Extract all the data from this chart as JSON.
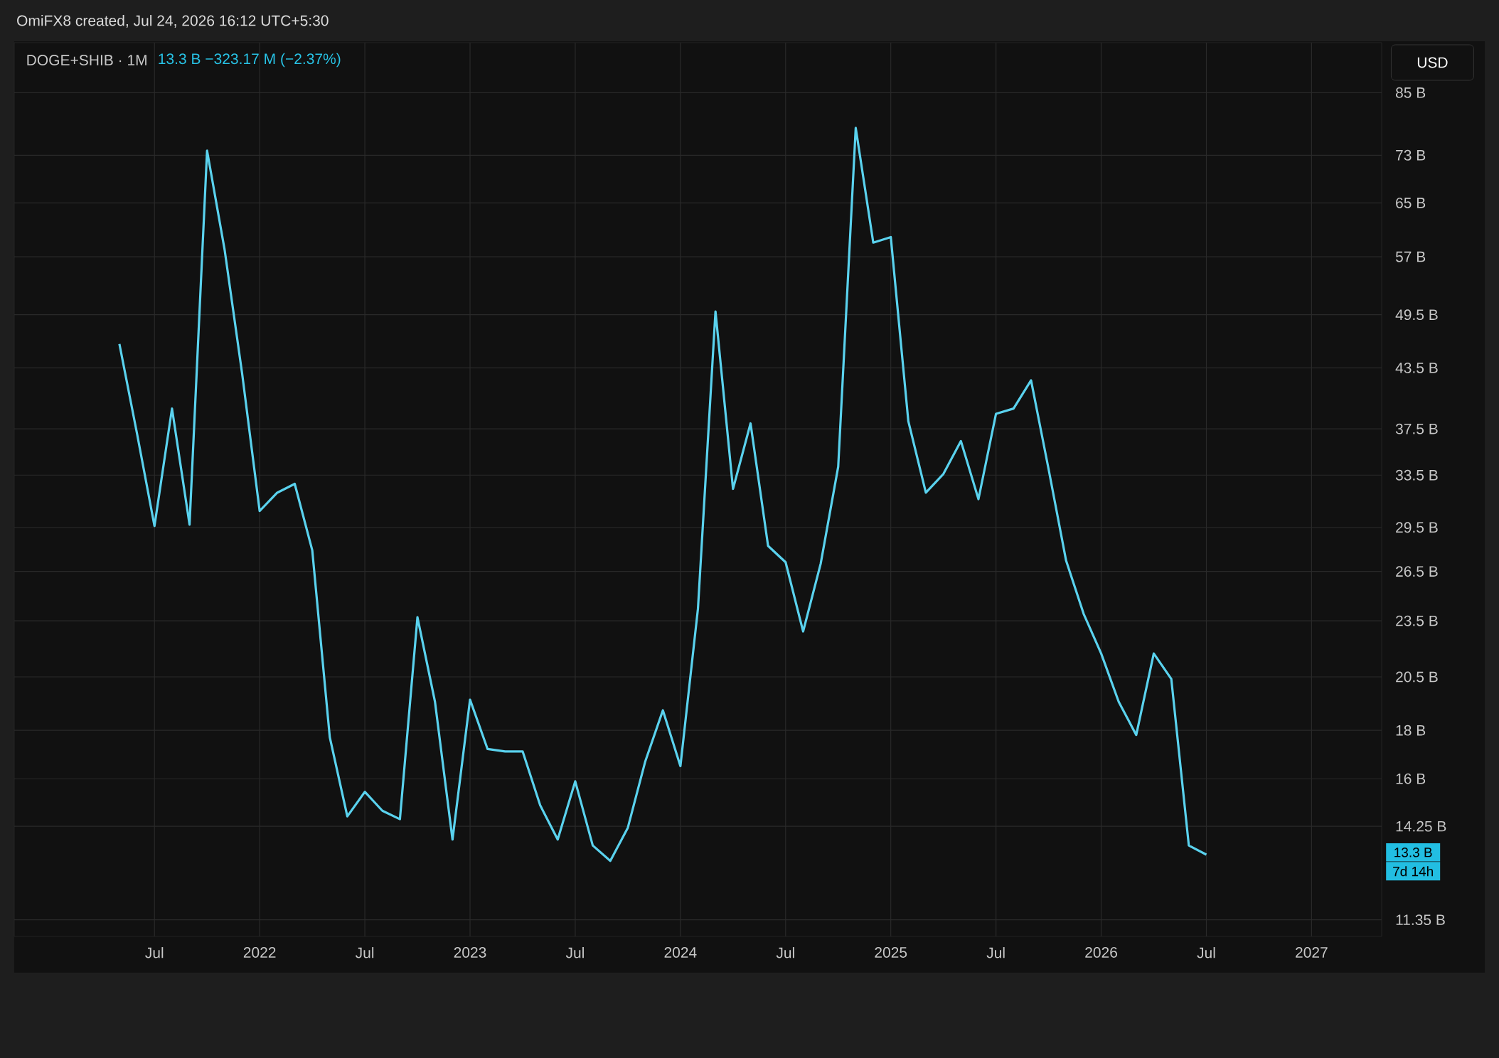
{
  "chart_data": {
    "type": "line",
    "title": "DOGE+SHIB · 1M",
    "subtitle": "13.3 B  −323.17 M (−2.37%)",
    "annotations": [
      "OmiFX8 created, Jul 24, 2026 16:12 UTC+5:30",
      "USD",
      "13.3 B",
      "7d 14h"
    ],
    "x": [
      "2021-05",
      "2021-06",
      "2021-07",
      "2021-08",
      "2021-09",
      "2021-10",
      "2021-11",
      "2021-12",
      "2022-01",
      "2022-02",
      "2022-03",
      "2022-04",
      "2022-05",
      "2022-06",
      "2022-07",
      "2022-08",
      "2022-09",
      "2022-10",
      "2022-11",
      "2022-12",
      "2023-01",
      "2023-02",
      "2023-03",
      "2023-04",
      "2023-05",
      "2023-06",
      "2023-07",
      "2023-08",
      "2023-09",
      "2023-10",
      "2023-11",
      "2023-12",
      "2024-01",
      "2024-02",
      "2024-03",
      "2024-04",
      "2024-05",
      "2024-06",
      "2024-07",
      "2024-08",
      "2024-09",
      "2024-10",
      "2024-11",
      "2024-12",
      "2025-01",
      "2025-02",
      "2025-03",
      "2025-04",
      "2025-05",
      "2025-06",
      "2025-07",
      "2025-08",
      "2025-09",
      "2025-10",
      "2025-11",
      "2025-12",
      "2026-01",
      "2026-02",
      "2026-03",
      "2026-04",
      "2026-05",
      "2026-06",
      "2026-07"
    ],
    "series": [
      {
        "color": "#5ad2ee",
        "values": [
          46.1,
          37.1,
          29.6,
          39.4,
          29.7,
          73.8,
          58.0,
          42.9,
          30.7,
          32.1,
          32.8,
          27.9,
          17.7,
          14.6,
          15.5,
          14.8,
          14.5,
          23.7,
          19.3,
          13.8,
          19.4,
          17.2,
          17.1,
          17.1,
          15.0,
          13.8,
          15.9,
          13.6,
          13.1,
          14.2,
          16.7,
          18.9,
          16.5,
          24.2,
          49.9,
          32.4,
          38.0,
          28.2,
          27.1,
          22.9,
          27.0,
          34.2,
          78.0,
          59.0,
          59.8,
          38.2,
          32.1,
          33.6,
          36.4,
          31.6,
          38.9,
          39.4,
          42.2,
          34.0,
          27.2,
          23.9,
          21.7,
          19.3,
          17.8,
          21.7,
          20.4,
          13.6,
          13.3
        ]
      }
    ],
    "log": "y",
    "grid": true,
    "line_style": "solid",
    "xlim": [
      "2020-11",
      "2027-05"
    ],
    "xticks": [
      {
        "value": "2021-07",
        "label": "Jul"
      },
      {
        "value": "2022-01",
        "label": "2022"
      },
      {
        "value": "2022-07",
        "label": "Jul"
      },
      {
        "value": "2023-01",
        "label": "2023"
      },
      {
        "value": "2023-07",
        "label": "Jul"
      },
      {
        "value": "2024-01",
        "label": "2024"
      },
      {
        "value": "2024-07",
        "label": "Jul"
      },
      {
        "value": "2025-01",
        "label": "2025"
      },
      {
        "value": "2025-07",
        "label": "Jul"
      },
      {
        "value": "2026-01",
        "label": "2026"
      },
      {
        "value": "2026-07",
        "label": "Jul"
      },
      {
        "value": "2027-01",
        "label": "2027"
      }
    ],
    "ylim": [
      10.9,
      96
    ],
    "yticks": [
      {
        "value": 11.35,
        "label": "11.35 B"
      },
      {
        "value": 14.25,
        "label": "14.25 B"
      },
      {
        "value": 16,
        "label": "16 B"
      },
      {
        "value": 18,
        "label": "18 B"
      },
      {
        "value": 20.5,
        "label": "20.5 B"
      },
      {
        "value": 23.5,
        "label": "23.5 B"
      },
      {
        "value": 26.5,
        "label": "26.5 B"
      },
      {
        "value": 29.5,
        "label": "29.5 B"
      },
      {
        "value": 33.5,
        "label": "33.5 B"
      },
      {
        "value": 37.5,
        "label": "37.5 B"
      },
      {
        "value": 43.5,
        "label": "43.5 B"
      },
      {
        "value": 49.5,
        "label": "49.5 B"
      },
      {
        "value": 57,
        "label": "57 B"
      },
      {
        "value": 65,
        "label": "65 B"
      },
      {
        "value": 73,
        "label": "73 B"
      },
      {
        "value": 85,
        "label": "85 B"
      }
    ]
  }
}
